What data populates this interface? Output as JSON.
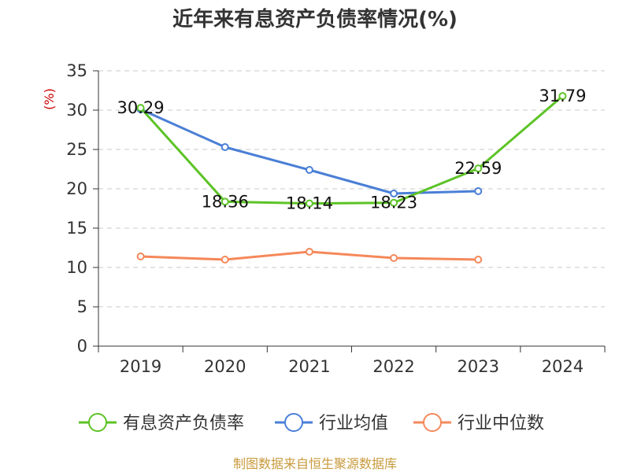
{
  "title": "近年来有息资产负债率情况(%)",
  "source": "制图数据来自恒生聚源数据库",
  "chart_data": {
    "type": "line",
    "title": "近年来有息资产负债率情况(%)",
    "ylabel": "(%)",
    "xlabel": "",
    "categories": [
      "2019",
      "2020",
      "2021",
      "2022",
      "2023",
      "2024"
    ],
    "ylim": [
      0,
      35
    ],
    "yticks": [
      0,
      5,
      10,
      15,
      20,
      25,
      30,
      35
    ],
    "grid": "horizontal-dashed",
    "legend_position": "bottom",
    "series": [
      {
        "name": "有息资产负债率",
        "color": "#5cc326",
        "values": [
          30.29,
          18.36,
          18.14,
          18.23,
          22.59,
          31.79
        ],
        "labels": [
          "30.29",
          "18.36",
          "18.14",
          "18.23",
          "22.59",
          "31.79"
        ]
      },
      {
        "name": "行业均值",
        "color": "#4a7fd6",
        "values": [
          30.1,
          25.3,
          22.4,
          19.4,
          19.7,
          null
        ]
      },
      {
        "name": "行业中位数",
        "color": "#f5885a",
        "values": [
          11.4,
          11.0,
          12.0,
          11.2,
          11.0,
          null
        ]
      }
    ]
  }
}
